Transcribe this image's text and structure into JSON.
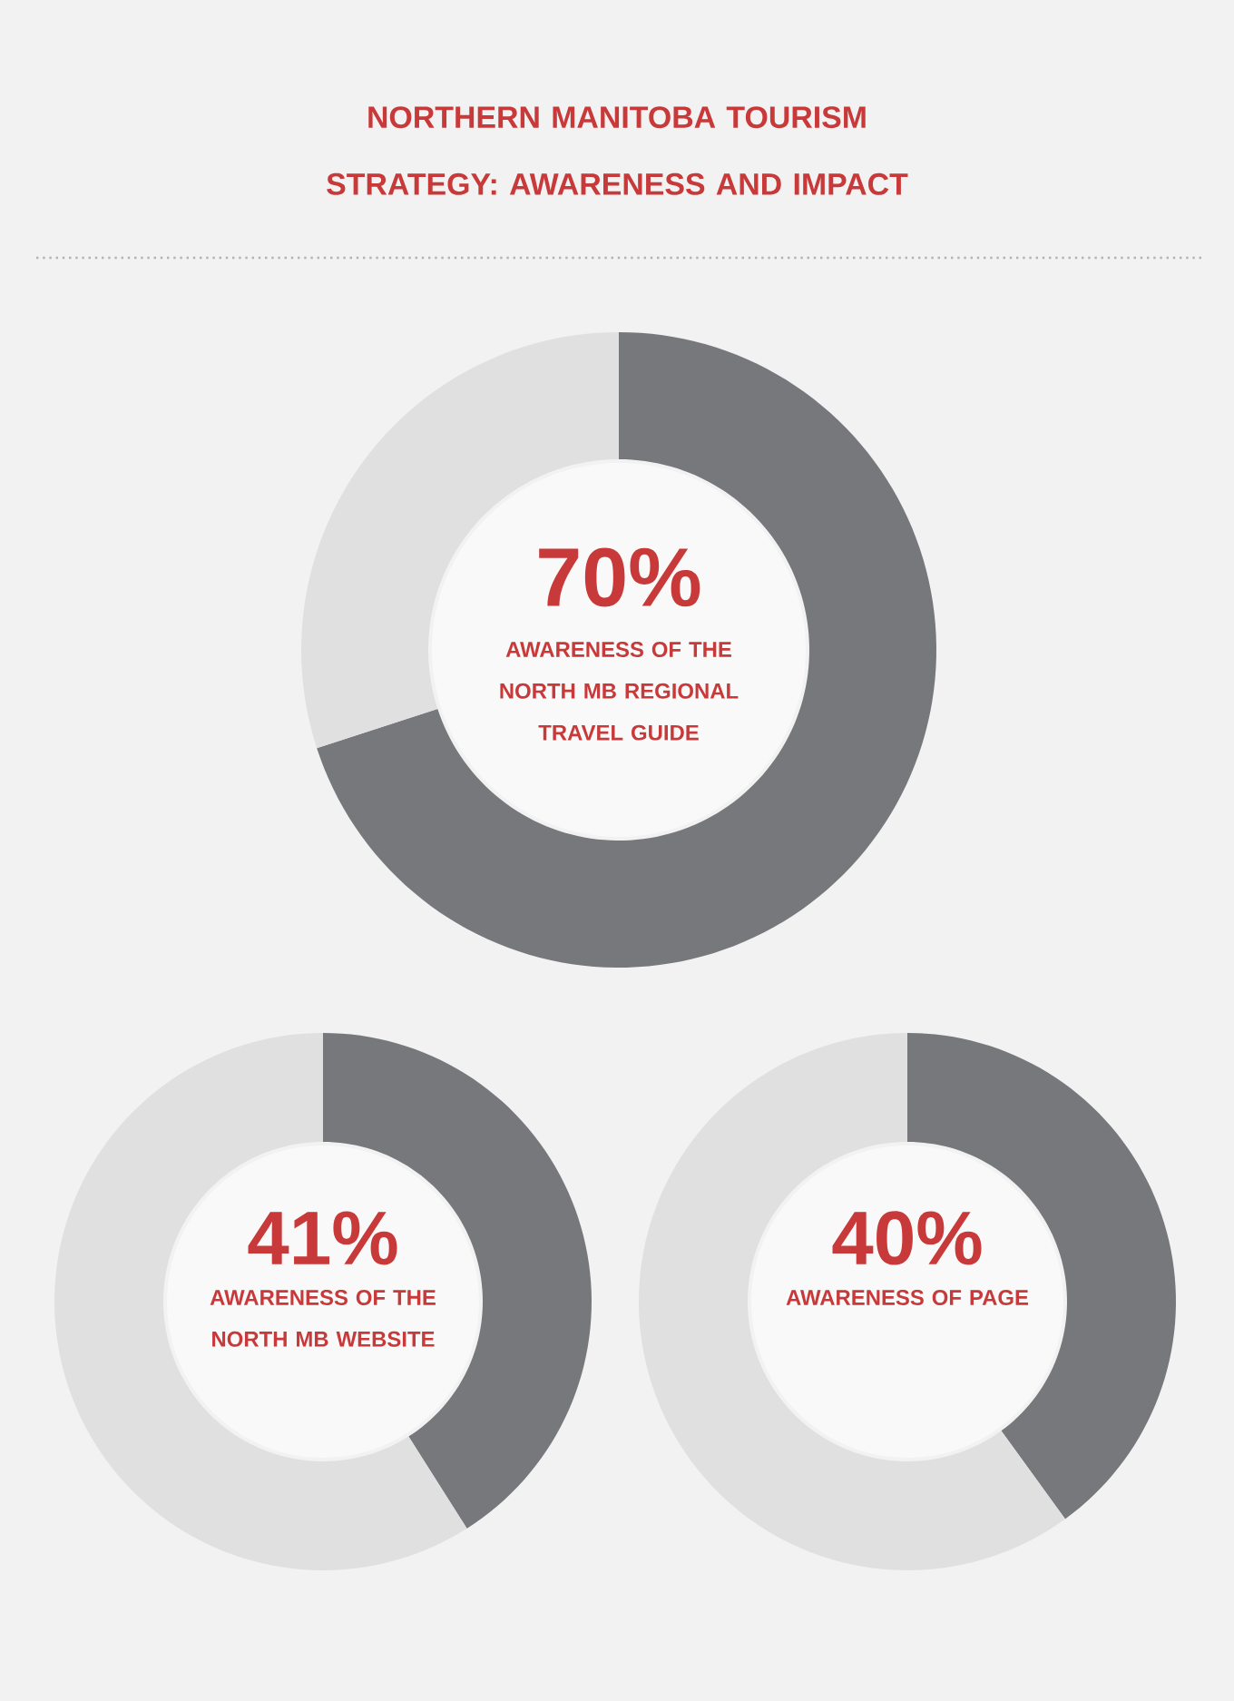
{
  "chart_data": [
    {
      "type": "donut",
      "title": "NORTHERN MANITOBA TOURISM STRATEGY: AWARENESS AND IMPACT",
      "categories": [
        null,
        null
      ],
      "values": [
        70,
        30
      ],
      "colors": [
        "#77787b",
        "#e0e0e1"
      ],
      "value_labels": [
        "70%",
        null
      ],
      "annotations": [
        "AWARENESS OF THE NORTH MB REGIONAL TRAVEL GUIDE"
      ]
    },
    {
      "type": "donut",
      "categories": [
        null,
        null
      ],
      "values": [
        41,
        59
      ],
      "colors": [
        "#77787b",
        "#e0e0e1"
      ],
      "value_labels": [
        "41%",
        null
      ],
      "annotations": [
        "AWARENESS OF THE NORTH MB WEBSITE"
      ]
    },
    {
      "type": "donut",
      "categories": [
        null,
        null
      ],
      "values": [
        40,
        60
      ],
      "colors": [
        "#77787b",
        "#e0e0e1"
      ],
      "value_labels": [
        "40%",
        null
      ],
      "annotations": [
        "AWARENESS OF PAGE"
      ]
    }
  ]
}
